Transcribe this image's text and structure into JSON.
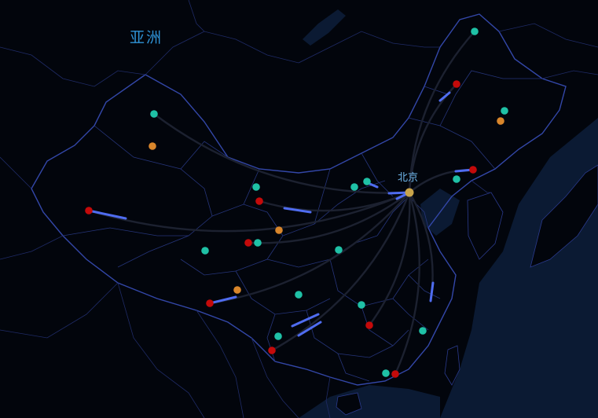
{
  "map": {
    "region_title": "亚洲",
    "hub_label": "北京",
    "colors": {
      "background": "#02050c",
      "border": "#2a3a8c",
      "sea": "#0b1a33",
      "route": "#1c2130",
      "trail": "#4f6cf0",
      "marker_teal": "#1fc1a6",
      "marker_red": "#c40a0a",
      "marker_orange": "#d9862b",
      "hub": "#c9a44a"
    }
  }
}
